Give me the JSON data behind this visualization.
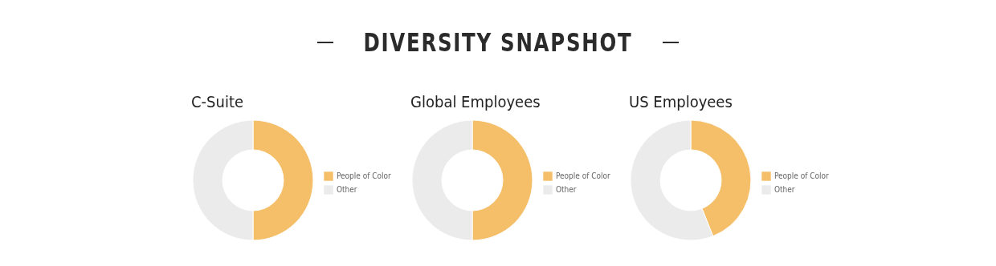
{
  "chart_data": [
    {
      "type": "other",
      "title": "DIVERSITY SNAPSHOT"
    },
    {
      "type": "donut",
      "title": "C-Suite",
      "categories": [
        "People of Color",
        "Other"
      ],
      "values": [
        50,
        50
      ],
      "colors": [
        "#f5bf69",
        "#ebebeb"
      ],
      "legend": "right"
    },
    {
      "type": "donut",
      "title": "Global Employees",
      "categories": [
        "People of Color",
        "Other"
      ],
      "values": [
        50,
        50
      ],
      "colors": [
        "#f5bf69",
        "#ebebeb"
      ],
      "legend": "right"
    },
    {
      "type": "donut",
      "title": "US Employees",
      "categories": [
        "People of Color",
        "Other"
      ],
      "values": [
        44,
        56
      ],
      "colors": [
        "#f5bf69",
        "#ebebeb"
      ],
      "legend": "right"
    }
  ]
}
